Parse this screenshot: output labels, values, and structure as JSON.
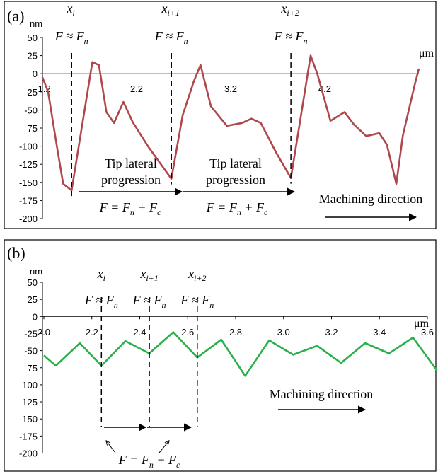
{
  "chart_data": [
    {
      "type": "line",
      "panel_label": "(a)",
      "y_unit": "nm",
      "x_unit": "μm",
      "ylim": [
        -200,
        50
      ],
      "yticks": [
        50,
        25,
        0,
        -25,
        -50,
        -75,
        -100,
        -125,
        -150,
        -175,
        -200
      ],
      "xtick_labels": [
        "1.2",
        "2.2",
        "3.2",
        "4.2"
      ],
      "color": "#b0474c",
      "series": [
        {
          "x": [
            1.2,
            1.26,
            1.35,
            1.42,
            1.51,
            1.73,
            1.8,
            1.88,
            1.96,
            2.06,
            2.16,
            2.32,
            2.57,
            2.69,
            2.81,
            2.88,
            2.99,
            3.16,
            3.32,
            3.42,
            3.52,
            3.68,
            3.84,
            3.95,
            4.05,
            4.12,
            4.26,
            4.41,
            4.51,
            4.64,
            4.78,
            4.86,
            4.96,
            5.03,
            5.15,
            5.2
          ],
          "y": [
            -5,
            -25,
            -98,
            -152,
            -161,
            16,
            12,
            -53,
            -68,
            -39,
            -67,
            -100,
            -145,
            -57,
            -10,
            12,
            -45,
            -72,
            -68,
            -62,
            -68,
            -108,
            -144,
            -55,
            25,
            0,
            -65,
            -53,
            -70,
            -86,
            -82,
            -98,
            -152,
            -85,
            -18,
            7
          ]
        }
      ],
      "markers": [
        {
          "label": "x",
          "sub": "i",
          "formula": "F ≈ F",
          "formula_sub": "n",
          "x": 1.51
        },
        {
          "label": "x",
          "sub": "i+1",
          "formula": "F ≈ F",
          "formula_sub": "n",
          "x": 2.57
        },
        {
          "label": "x",
          "sub": "i+2",
          "formula": "F ≈ F",
          "formula_sub": "n",
          "x": 3.84
        }
      ],
      "annotations": {
        "segment_text_1": "Tip lateral",
        "segment_text_2": "progression",
        "force_text": "F = F",
        "force_sub_n": "n",
        "force_plus": " + F",
        "force_sub_c": "c",
        "machining_direction": "Machining direction"
      }
    },
    {
      "type": "line",
      "panel_label": "(b)",
      "y_unit": "nm",
      "x_unit": "μm",
      "ylim": [
        -200,
        50
      ],
      "yticks": [
        50,
        25,
        0,
        -25,
        -50,
        -75,
        -100,
        -125,
        -150,
        -175,
        -200
      ],
      "xlim": [
        2.0,
        3.6
      ],
      "xtick_labels": [
        "2.0",
        "2.2",
        "2.4",
        "2.6",
        "2.8",
        "3.0",
        "3.2",
        "3.4",
        "3.6"
      ],
      "color": "#2ab04a",
      "series": [
        {
          "x": [
            2.0,
            2.05,
            2.15,
            2.24,
            2.34,
            2.44,
            2.54,
            2.64,
            2.74,
            2.84,
            2.94,
            3.04,
            3.14,
            3.24,
            3.34,
            3.44,
            3.54,
            3.64
          ],
          "y": [
            -57,
            -72,
            -39,
            -72,
            -36,
            -54,
            -23,
            -60,
            -34,
            -87,
            -35,
            -56,
            -43,
            -68,
            -39,
            -54,
            -31,
            -79
          ]
        }
      ],
      "markers": [
        {
          "label": "x",
          "sub": "i",
          "formula": "F ≈ F",
          "formula_sub": "n",
          "x": 2.24
        },
        {
          "label": "x",
          "sub": "i+1",
          "formula": "F ≈ F",
          "formula_sub": "n",
          "x": 2.44
        },
        {
          "label": "x",
          "sub": "i+2",
          "formula": "F ≈ F",
          "formula_sub": "n",
          "x": 2.64
        }
      ],
      "annotations": {
        "force_text": "F = F",
        "force_sub_n": "n",
        "force_plus": " + F",
        "force_sub_c": "c",
        "machining_direction": "Machining direction"
      }
    }
  ]
}
